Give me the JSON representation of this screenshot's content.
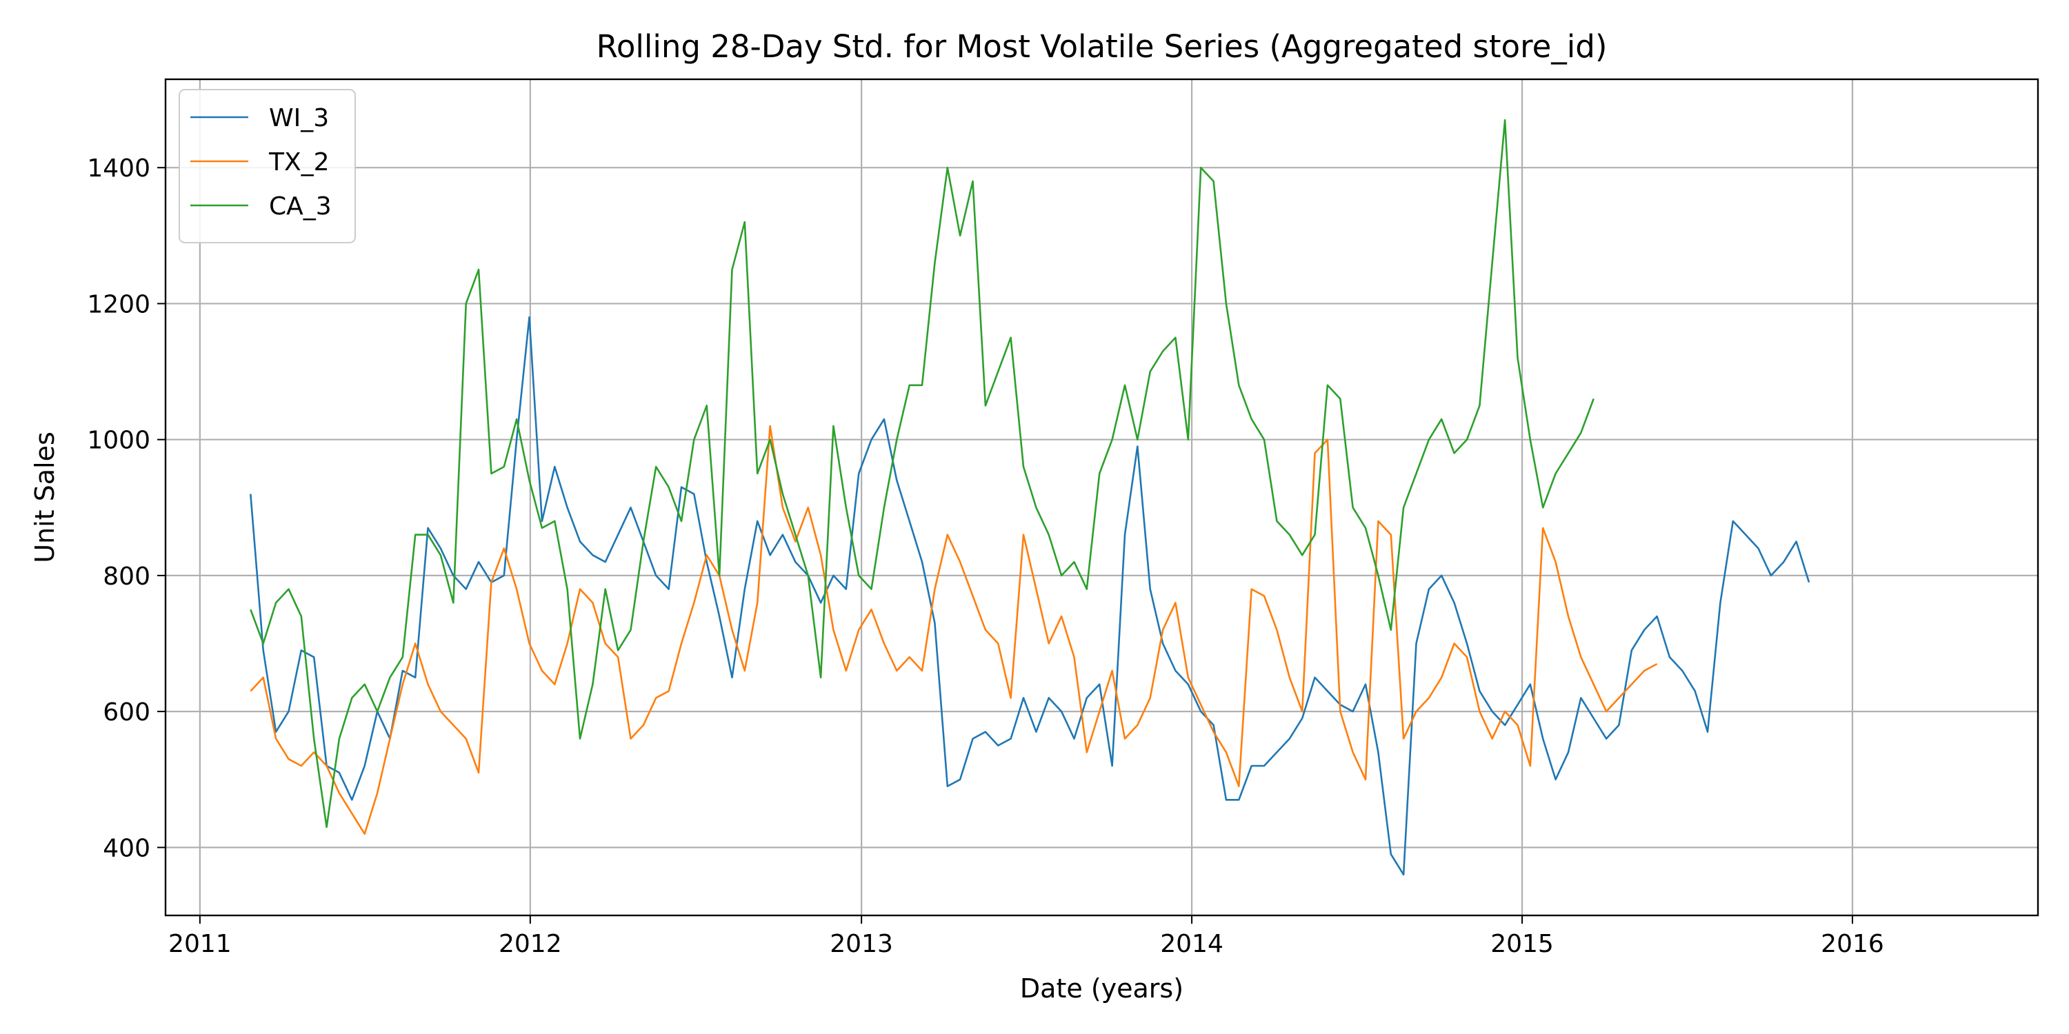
{
  "chart_data": {
    "type": "line",
    "title": "Rolling 28-Day Std. for Most Volatile Series (Aggregated store_id)",
    "xlabel": "Date (years)",
    "ylabel": "Unit Sales",
    "xlim": [
      "2010-11-24",
      "2016-07-24"
    ],
    "ylim": [
      300,
      1530
    ],
    "x_ticks": [
      "2011",
      "2012",
      "2013",
      "2014",
      "2015",
      "2016"
    ],
    "y_ticks": [
      400,
      600,
      800,
      1000,
      1200,
      1400
    ],
    "grid": true,
    "legend_position": "upper-left",
    "sampling": "points approximately every 14 days",
    "start_date": "2011-02-26",
    "step_days": 14,
    "series": [
      {
        "name": "WI_3",
        "color": "#1f77b4",
        "values": [
          920,
          690,
          570,
          600,
          690,
          680,
          520,
          510,
          470,
          520,
          600,
          560,
          660,
          650,
          870,
          840,
          800,
          780,
          820,
          790,
          800,
          1000,
          1180,
          880,
          960,
          900,
          850,
          830,
          820,
          860,
          900,
          850,
          800,
          780,
          930,
          920,
          820,
          740,
          650,
          780,
          880,
          830,
          860,
          820,
          800,
          760,
          800,
          780,
          950,
          1000,
          1030,
          940,
          880,
          820,
          730,
          490,
          500,
          560,
          570,
          550,
          560,
          620,
          570,
          620,
          600,
          560,
          620,
          640,
          520,
          860,
          990,
          780,
          700,
          660,
          640,
          600,
          580,
          470,
          470,
          520,
          520,
          540,
          560,
          590,
          650,
          630,
          610,
          600,
          640,
          540,
          390,
          360,
          700,
          780,
          800,
          760,
          700,
          630,
          600,
          580,
          610,
          640,
          560,
          500,
          540,
          620,
          590,
          560,
          580,
          690,
          720,
          740,
          680,
          660,
          630,
          570,
          760,
          880,
          860,
          840,
          800,
          820,
          850,
          790
        ]
      },
      {
        "name": "TX_2",
        "color": "#ff7f0e",
        "values": [
          630,
          650,
          560,
          530,
          520,
          540,
          520,
          480,
          450,
          420,
          480,
          560,
          640,
          700,
          640,
          600,
          580,
          560,
          510,
          790,
          840,
          780,
          700,
          660,
          640,
          700,
          780,
          760,
          700,
          680,
          560,
          580,
          620,
          630,
          700,
          760,
          830,
          800,
          720,
          660,
          760,
          1020,
          900,
          850,
          900,
          830,
          720,
          660,
          720,
          750,
          700,
          660,
          680,
          660,
          780,
          860,
          820,
          770,
          720,
          700,
          620,
          860,
          780,
          700,
          740,
          680,
          540,
          600,
          660,
          560,
          580,
          620,
          720,
          760,
          650,
          610,
          570,
          540,
          490,
          780,
          770,
          720,
          650,
          600,
          980,
          1000,
          600,
          540,
          500,
          880,
          860,
          560,
          600,
          620,
          650,
          700,
          680,
          600,
          560,
          600,
          580,
          520,
          870,
          820,
          740,
          680,
          640,
          600,
          620,
          640,
          660,
          670
        ]
      },
      {
        "name": "CA_3",
        "color": "#2ca02c",
        "values": [
          750,
          700,
          760,
          780,
          740,
          560,
          430,
          560,
          620,
          640,
          600,
          650,
          680,
          860,
          860,
          830,
          760,
          1200,
          1250,
          950,
          960,
          1030,
          940,
          870,
          880,
          780,
          560,
          640,
          780,
          690,
          720,
          850,
          960,
          930,
          880,
          1000,
          1050,
          800,
          1250,
          1320,
          950,
          1000,
          920,
          860,
          800,
          650,
          1020,
          900,
          800,
          780,
          900,
          1000,
          1080,
          1080,
          1260,
          1400,
          1300,
          1380,
          1050,
          1100,
          1150,
          960,
          900,
          860,
          800,
          820,
          780,
          950,
          1000,
          1080,
          1000,
          1100,
          1130,
          1150,
          1000,
          1400,
          1380,
          1200,
          1080,
          1030,
          1000,
          880,
          860,
          830,
          860,
          1080,
          1060,
          900,
          870,
          800,
          720,
          900,
          950,
          1000,
          1030,
          980,
          1000,
          1050,
          1260,
          1470,
          1120,
          1000,
          900,
          950,
          980,
          1010,
          1060
        ]
      }
    ]
  }
}
